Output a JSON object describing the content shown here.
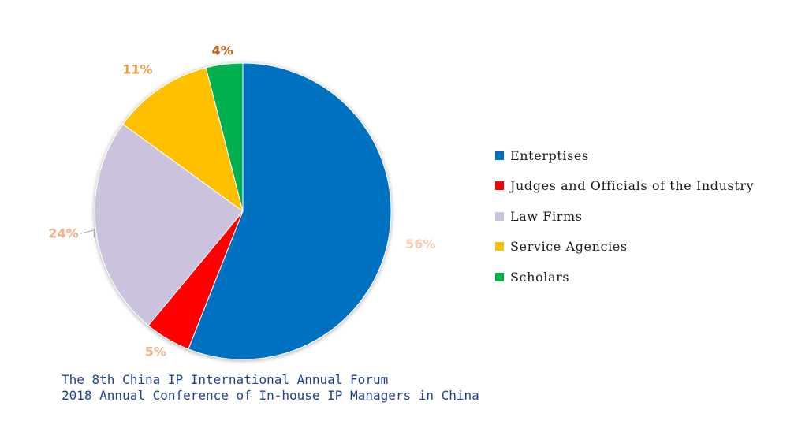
{
  "chart_data": {
    "type": "pie",
    "title": "",
    "categories": [
      "Enterptises",
      "Judges and Officials of the Industry",
      "Law Firms",
      "Service Agencies",
      "Scholars"
    ],
    "values": [
      56,
      5,
      24,
      11,
      4
    ],
    "labels": [
      "56%",
      "5%",
      "24%",
      "11%",
      "4%"
    ],
    "colors": [
      "#0070C0",
      "#FF0000",
      "#CBC2DD",
      "#FFC000",
      "#00B050"
    ],
    "label_colors": [
      "#F8CBAD",
      "#F4B183",
      "#F4B183",
      "#ED9D44",
      "#C55A11"
    ],
    "legend_position": "right"
  },
  "caption": {
    "line1": "The 8th China IP International Annual Forum",
    "line2": "2018 Annual Conference of In-house IP Managers in China"
  }
}
